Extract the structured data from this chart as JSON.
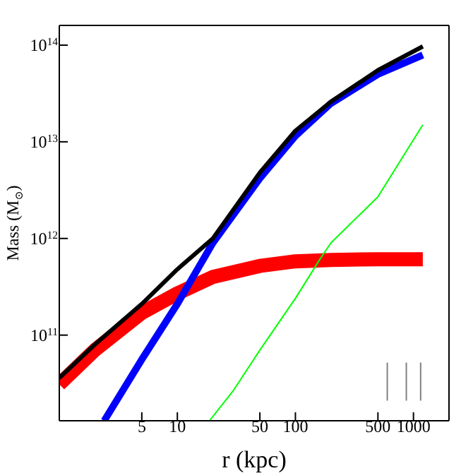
{
  "chart_data": {
    "type": "line",
    "xlabel": "r (kpc)",
    "ylabel": "Mass (M$_{⊙}$)",
    "log": "xy",
    "xlim": [
      1,
      2000
    ],
    "xticks": [
      5,
      10,
      50,
      100,
      500,
      1000
    ],
    "ylim": [
      13000000000.0,
      160000000000000.0
    ],
    "yticks": [
      {
        "value": 100000000000.0,
        "label": "10$^{11}$"
      },
      {
        "value": 1000000000000.0,
        "label": "10$^{12}$"
      },
      {
        "value": 10000000000000.0,
        "label": "10$^{13}$"
      },
      {
        "value": 100000000000000.0,
        "label": "10$^{14}$"
      }
    ],
    "marker": "none",
    "line_style": "solid",
    "series": [
      {
        "color": "#ff0000",
        "x": [
          1,
          2,
          5,
          10,
          20,
          50,
          100,
          200,
          500,
          1200
        ],
        "values": [
          31000000000.0,
          70000000000.0,
          170000000000.0,
          270000000000.0,
          400000000000.0,
          520000000000.0,
          580000000000.0,
          600000000000.0,
          610000000000.0,
          610000000000.0
        ]
      },
      {
        "color": "#0000ff",
        "x": [
          2.4,
          5,
          10,
          20,
          50,
          100,
          200,
          500,
          1200
        ],
        "values": [
          13000000000.0,
          56000000000.0,
          210000000000.0,
          900000000000.0,
          4200000000000.0,
          11500000000000.0,
          25000000000000.0,
          50000000000000.0,
          79000000000000.0
        ]
      },
      {
        "color": "#000000",
        "x": [
          1,
          2,
          5,
          10,
          20,
          50,
          100,
          200,
          500,
          1200
        ],
        "values": [
          36000000000.0,
          80000000000.0,
          210000000000.0,
          480000000000.0,
          1000000000000.0,
          4800000000000.0,
          13000000000000.0,
          26000000000000.0,
          55000000000000.0,
          97000000000000.0
        ]
      },
      {
        "color": "#00ff00",
        "x": [
          18.7,
          30,
          50,
          100,
          160,
          200,
          500,
          1200
        ],
        "values": [
          13000000000.0,
          27000000000.0,
          70000000000.0,
          240000000000.0,
          600000000000.0,
          900000000000.0,
          2700000000000.0,
          15000000000000.0
        ]
      },
      {
        "color": "#808080",
        "x": [
          600,
          600
        ],
        "values": [
          21000000000.0,
          52000000000.0
        ]
      },
      {
        "color": "#808080",
        "x": [
          870,
          870
        ],
        "values": [
          21000000000.0,
          52000000000.0
        ]
      },
      {
        "color": "#808080",
        "x": [
          1150,
          1150
        ],
        "values": [
          21000000000.0,
          52000000000.0
        ]
      }
    ]
  }
}
